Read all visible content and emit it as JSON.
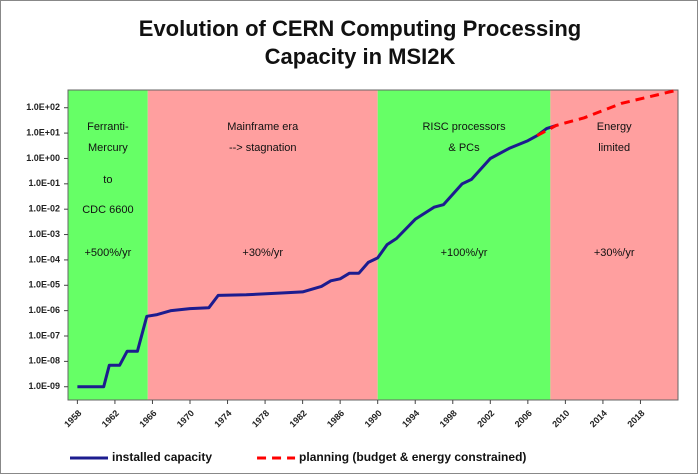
{
  "chart_data": {
    "type": "line",
    "title": [
      "Evolution of CERN Computing Processing",
      "Capacity in MSI2K"
    ],
    "log_y": true,
    "grid": false,
    "xlim": [
      1957,
      2022
    ],
    "ylim": [
      3e-10,
      500
    ],
    "xticks": [
      1958,
      1962,
      1966,
      1970,
      1974,
      1978,
      1982,
      1986,
      1990,
      1994,
      1998,
      2002,
      2006,
      2010,
      2014,
      2018
    ],
    "yticks": [
      {
        "value": 1e-09,
        "label": "1.0E-09"
      },
      {
        "value": 1e-08,
        "label": "1.0E-08"
      },
      {
        "value": 1e-07,
        "label": "1.0E-07"
      },
      {
        "value": 1e-06,
        "label": "1.0E-06"
      },
      {
        "value": 1e-05,
        "label": "1.0E-05"
      },
      {
        "value": 0.0001,
        "label": "1.0E-04"
      },
      {
        "value": 0.001,
        "label": "1.0E-03"
      },
      {
        "value": 0.01,
        "label": "1.0E-02"
      },
      {
        "value": 0.1,
        "label": "1.0E-01"
      },
      {
        "value": 1,
        "label": "1.0E+00"
      },
      {
        "value": 10,
        "label": "1.0E+01"
      },
      {
        "value": 100,
        "label": "1.0E+02"
      }
    ],
    "eras": [
      {
        "start": 1957,
        "end": 1965.5,
        "color": "#66ff66",
        "labels": [
          "Ferranti-",
          "Mercury",
          "to",
          "CDC 6600"
        ],
        "rate": "+500%/yr"
      },
      {
        "start": 1965.5,
        "end": 1990,
        "color": "#ff9f9f",
        "labels": [
          "Mainframe era",
          "--> stagnation"
        ],
        "rate": "+30%/yr"
      },
      {
        "start": 1990,
        "end": 2008.4,
        "color": "#66ff66",
        "labels": [
          "RISC processors",
          "& PCs"
        ],
        "rate": "+100%/yr"
      },
      {
        "start": 2008.4,
        "end": 2022,
        "color": "#ff9f9f",
        "labels": [
          "Energy",
          "limited"
        ],
        "rate": "+30%/yr"
      }
    ],
    "series": [
      {
        "name": "installed capacity",
        "color": "#1c1c8f",
        "dash": false,
        "x": [
          1958,
          1960.8,
          1961.4,
          1962.5,
          1963.3,
          1964.4,
          1965.4,
          1966.5,
          1968,
          1970,
          1972,
          1973,
          1976,
          1980,
          1982,
          1984,
          1985,
          1986,
          1987,
          1988,
          1989,
          1990,
          1991,
          1992,
          1994,
          1996,
          1997,
          1999,
          2000,
          2002,
          2004,
          2006,
          2007,
          2008,
          2009
        ],
        "values": [
          1e-09,
          1e-09,
          7e-09,
          7e-09,
          2.5e-08,
          2.5e-08,
          6e-07,
          7e-07,
          1e-06,
          1.2e-06,
          1.3e-06,
          4e-06,
          4.2e-06,
          5e-06,
          5.5e-06,
          9e-06,
          1.5e-05,
          1.8e-05,
          3e-05,
          3e-05,
          8e-05,
          0.00012,
          0.0004,
          0.0007,
          0.004,
          0.012,
          0.015,
          0.1,
          0.15,
          1,
          2.5,
          5,
          8,
          15,
          20
        ]
      },
      {
        "name": "planning (budget & energy constrained)",
        "color": "#ff0000",
        "dash": true,
        "x": [
          2007,
          2009,
          2012,
          2016,
          2021.8
        ],
        "values": [
          8,
          20,
          40,
          150,
          480
        ]
      }
    ]
  }
}
